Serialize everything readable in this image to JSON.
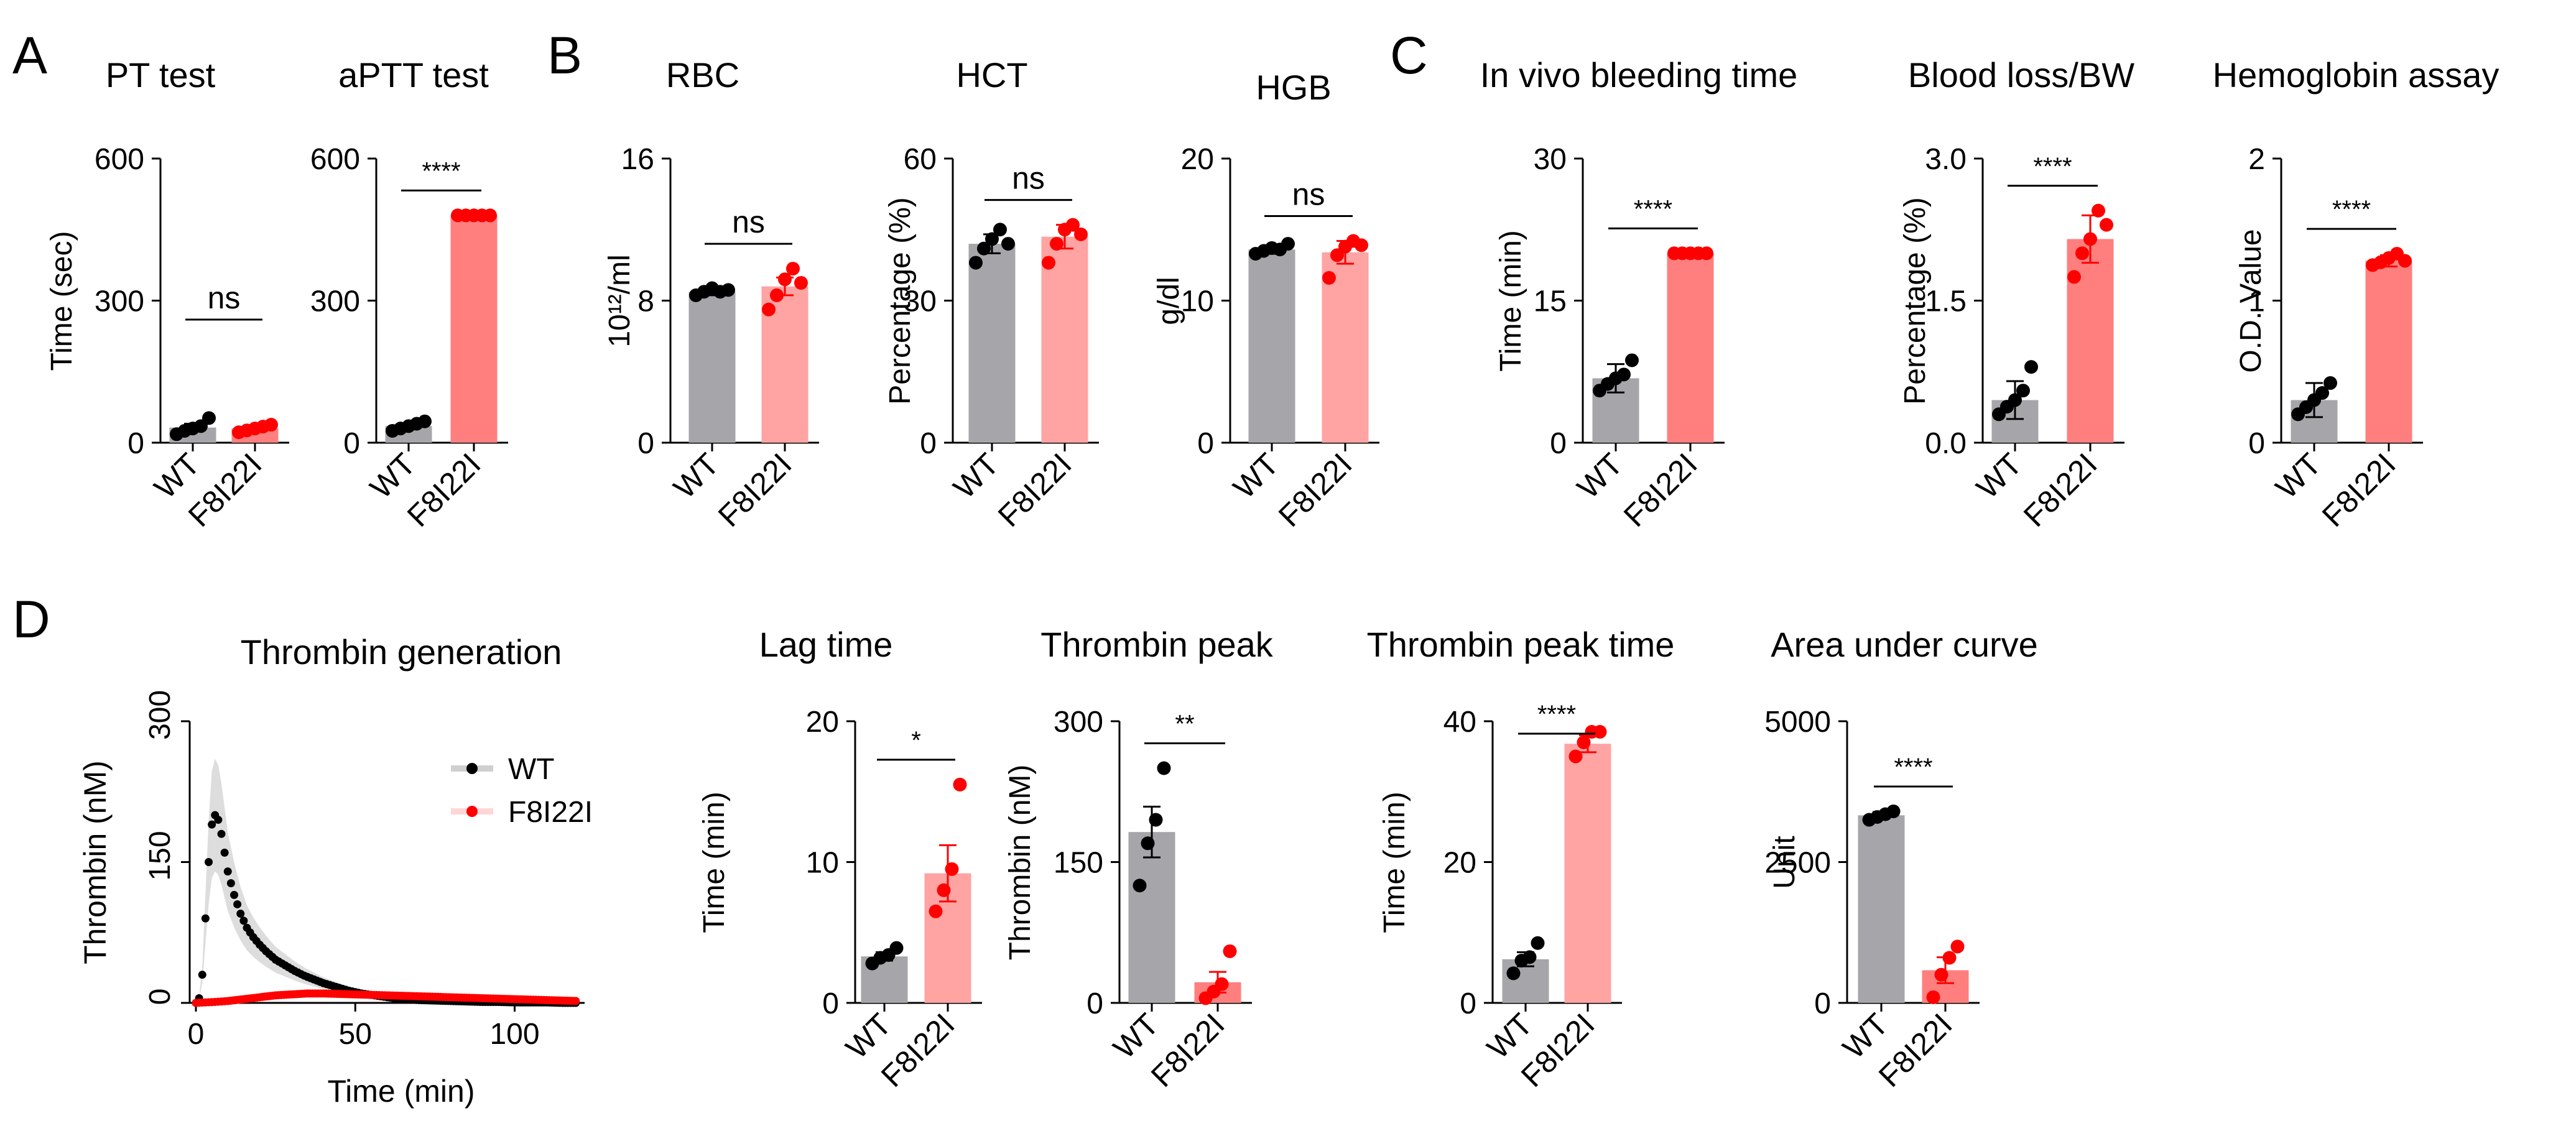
{
  "figure": {
    "panel_letters": [
      "A",
      "B",
      "C",
      "D"
    ],
    "colors": {
      "wt_bar": "#a6a6aa",
      "mut_bar": "#ff7f7f",
      "mut_bar_light": "#ffa3a3",
      "wt_point": "#000000",
      "mut_point": "#ff0000",
      "axis": "#000000"
    }
  },
  "chart_data": [
    {
      "id": "pt",
      "panel": "A",
      "type": "bar",
      "title": "PT test",
      "ylabel": "Time (sec)",
      "ylim": [
        0,
        600
      ],
      "yticks": [
        "0",
        "300",
        "600"
      ],
      "categories": [
        "WT",
        "F8I22I"
      ],
      "values": [
        32,
        30
      ],
      "errors": [
        8,
        6
      ],
      "points": [
        [
          18,
          25,
          30,
          35,
          52
        ],
        [
          22,
          26,
          30,
          34,
          38
        ]
      ],
      "significance": "ns"
    },
    {
      "id": "aptt",
      "panel": "A",
      "type": "bar",
      "title": "aPTT test",
      "ylabel": "",
      "ylim": [
        0,
        600
      ],
      "yticks": [
        "0",
        "300",
        "600"
      ],
      "categories": [
        "WT",
        "F8I22I"
      ],
      "values": [
        35,
        480
      ],
      "errors": [
        6,
        0
      ],
      "points": [
        [
          25,
          30,
          35,
          40,
          45
        ],
        [
          480,
          480,
          480,
          480,
          480
        ]
      ],
      "significance": "****"
    },
    {
      "id": "rbc",
      "panel": "B",
      "type": "bar",
      "title": "RBC",
      "ylabel": "10¹²/ml",
      "ylim": [
        0,
        16
      ],
      "yticks": [
        "0",
        "8",
        "16"
      ],
      "categories": [
        "WT",
        "F8I22I"
      ],
      "values": [
        8.5,
        8.8
      ],
      "errors": [
        0.2,
        0.5
      ],
      "points": [
        [
          8.3,
          8.5,
          8.7,
          8.5,
          8.6
        ],
        [
          7.5,
          8.3,
          9.2,
          9.8,
          9.0
        ]
      ],
      "significance": "ns"
    },
    {
      "id": "hct",
      "panel": "B",
      "type": "bar",
      "title": "HCT",
      "ylabel": "Percentage (%)",
      "ylim": [
        0,
        60
      ],
      "yticks": [
        "0",
        "30",
        "60"
      ],
      "categories": [
        "WT",
        "F8I22I"
      ],
      "values": [
        42,
        43.5
      ],
      "errors": [
        2,
        2.5
      ],
      "points": [
        [
          38,
          41,
          43,
          45,
          42
        ],
        [
          38,
          42,
          45,
          46,
          44
        ]
      ],
      "significance": "ns"
    },
    {
      "id": "hgb",
      "panel": "B",
      "type": "bar",
      "title": "HGB",
      "ylabel": "g/dl",
      "ylim": [
        0,
        20
      ],
      "yticks": [
        "0",
        "10",
        "20"
      ],
      "categories": [
        "WT",
        "F8I22I"
      ],
      "values": [
        13.6,
        13.4
      ],
      "errors": [
        0.3,
        0.8
      ],
      "points": [
        [
          13.3,
          13.5,
          13.7,
          13.6,
          14.0
        ],
        [
          11.6,
          13.2,
          13.8,
          14.2,
          13.9
        ]
      ],
      "significance": "ns"
    },
    {
      "id": "bleed_time",
      "panel": "C",
      "type": "bar",
      "title": "In vivo bleeding time",
      "ylabel": "Time (min)",
      "ylim": [
        0,
        30
      ],
      "yticks": [
        "0",
        "15",
        "30"
      ],
      "categories": [
        "WT",
        "F8I22I"
      ],
      "values": [
        6.8,
        20
      ],
      "errors": [
        1.5,
        0
      ],
      "points": [
        [
          5.5,
          6.2,
          6.8,
          7.2,
          8.7
        ],
        [
          20,
          20,
          20,
          20,
          20
        ]
      ],
      "significance": "****"
    },
    {
      "id": "blood_loss",
      "panel": "C",
      "type": "bar",
      "title": "Blood loss/BW",
      "ylabel": "Percentage (%)",
      "ylim": [
        0,
        3.0
      ],
      "yticks": [
        "0.0",
        "1.5",
        "3.0"
      ],
      "categories": [
        "WT",
        "F8I22I"
      ],
      "values": [
        0.45,
        2.15
      ],
      "errors": [
        0.2,
        0.25
      ],
      "points": [
        [
          0.3,
          0.38,
          0.45,
          0.55,
          0.8
        ],
        [
          1.75,
          2.0,
          2.15,
          2.45,
          2.3
        ]
      ],
      "significance": "****"
    },
    {
      "id": "hemoglobin",
      "panel": "C",
      "type": "bar",
      "title": "Hemoglobin assay",
      "ylabel": "O.D. Value",
      "ylim": [
        0,
        2
      ],
      "yticks": [
        "0",
        "1",
        "2"
      ],
      "categories": [
        "WT",
        "F8I22I"
      ],
      "values": [
        0.3,
        1.28
      ],
      "errors": [
        0.12,
        0.04
      ],
      "points": [
        [
          0.2,
          0.25,
          0.3,
          0.35,
          0.42
        ],
        [
          1.25,
          1.27,
          1.3,
          1.33,
          1.28
        ]
      ],
      "significance": "****"
    },
    {
      "id": "thrombin_gen",
      "panel": "D",
      "type": "line",
      "title": "Thrombin generation",
      "xlabel": "Time (min)",
      "ylabel": "Thrombin (nM)",
      "xlim": [
        0,
        120
      ],
      "ylim": [
        0,
        300
      ],
      "xticks": [
        "0",
        "50",
        "100"
      ],
      "yticks": [
        "0",
        "150",
        "300"
      ],
      "legend_position": "top-right",
      "series": [
        {
          "name": "WT",
          "x": [
            0,
            1,
            2,
            3,
            4,
            5,
            6,
            7,
            8,
            9,
            10,
            12,
            14,
            16,
            18,
            20,
            22,
            25,
            28,
            31,
            34,
            37,
            40,
            44,
            48,
            52,
            56,
            60,
            65,
            70,
            75,
            80,
            85,
            90,
            95,
            100,
            105,
            110,
            115,
            120
          ],
          "y": [
            0,
            5,
            30,
            90,
            150,
            190,
            200,
            195,
            180,
            160,
            140,
            115,
            95,
            80,
            70,
            62,
            55,
            46,
            40,
            34,
            29,
            25,
            21,
            17,
            13,
            10,
            8,
            6,
            4,
            3,
            2.5,
            2,
            1.5,
            1,
            1,
            0.5,
            0.5,
            0.5,
            0,
            0
          ]
        },
        {
          "name": "F8I22I",
          "x": [
            0,
            3,
            6,
            10,
            15,
            20,
            25,
            30,
            35,
            40,
            45,
            50,
            55,
            60,
            65,
            70,
            75,
            80,
            85,
            90,
            95,
            100,
            105,
            110,
            115,
            120
          ],
          "y": [
            0,
            0.5,
            1,
            2,
            4,
            6,
            8,
            9,
            10,
            10,
            9.5,
            9,
            8.5,
            8,
            7.5,
            7,
            6.5,
            6,
            5.5,
            5,
            4.5,
            4,
            3.5,
            3,
            2.5,
            2
          ]
        }
      ]
    },
    {
      "id": "lag_time",
      "panel": "D",
      "type": "bar",
      "title": "Lag time",
      "ylabel": "Time (min)",
      "ylim": [
        0,
        20
      ],
      "yticks": [
        "0",
        "10",
        "20"
      ],
      "categories": [
        "WT",
        "F8I22I"
      ],
      "values": [
        3.3,
        9.2
      ],
      "errors": [
        0.3,
        2.0
      ],
      "points": [
        [
          2.8,
          3.2,
          3.4,
          3.9
        ],
        [
          6.5,
          8.0,
          9.5,
          15.5
        ]
      ],
      "significance": "*"
    },
    {
      "id": "thrombin_peak",
      "panel": "D",
      "type": "bar",
      "title": "Thrombin peak",
      "ylabel": "Thrombin (nM)",
      "ylim": [
        0,
        300
      ],
      "yticks": [
        "0",
        "150",
        "300"
      ],
      "categories": [
        "WT",
        "F8I22I"
      ],
      "values": [
        182,
        22
      ],
      "errors": [
        27,
        11
      ],
      "points": [
        [
          125,
          170,
          195,
          250
        ],
        [
          5,
          12,
          20,
          55
        ]
      ],
      "significance": "**"
    },
    {
      "id": "peak_time",
      "panel": "D",
      "type": "bar",
      "title": "Thrombin peak time",
      "ylabel": "Time (min)",
      "ylim": [
        0,
        40
      ],
      "yticks": [
        "0",
        "20",
        "40"
      ],
      "categories": [
        "WT",
        "F8I22I"
      ],
      "values": [
        6.2,
        36.8
      ],
      "errors": [
        1.0,
        1.2
      ],
      "points": [
        [
          4.2,
          6.0,
          6.5,
          8.5
        ],
        [
          35,
          37,
          38.5,
          38.5
        ]
      ],
      "significance": "****"
    },
    {
      "id": "auc",
      "panel": "D",
      "type": "bar",
      "title": "Area under curve",
      "ylabel": "Unit",
      "ylim": [
        0,
        5000
      ],
      "yticks": [
        "0",
        "2500",
        "5000"
      ],
      "categories": [
        "WT",
        "F8I22I"
      ],
      "values": [
        3330,
        580
      ],
      "errors": [
        60,
        230
      ],
      "points": [
        [
          3250,
          3300,
          3350,
          3400
        ],
        [
          100,
          500,
          800,
          1000
        ]
      ],
      "significance": "****"
    }
  ]
}
